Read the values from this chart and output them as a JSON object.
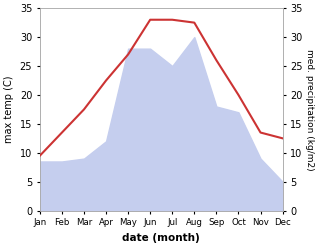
{
  "months": [
    "Jan",
    "Feb",
    "Mar",
    "Apr",
    "May",
    "Jun",
    "Jul",
    "Aug",
    "Sep",
    "Oct",
    "Nov",
    "Dec"
  ],
  "month_positions": [
    1,
    2,
    3,
    4,
    5,
    6,
    7,
    8,
    9,
    10,
    11,
    12
  ],
  "temperature": [
    9.5,
    13.5,
    17.5,
    22.5,
    27.0,
    33.0,
    33.0,
    32.5,
    26.0,
    20.0,
    13.5,
    12.5
  ],
  "precipitation": [
    8.5,
    8.5,
    9.0,
    12.0,
    28.0,
    28.0,
    25.0,
    30.0,
    18.0,
    17.0,
    9.0,
    5.0
  ],
  "temp_color": "#cc3333",
  "precip_fill_color": "#c5ceee",
  "ylim": [
    0,
    35
  ],
  "yticks": [
    0,
    5,
    10,
    15,
    20,
    25,
    30,
    35
  ],
  "xlabel": "date (month)",
  "ylabel_left": "max temp (C)",
  "ylabel_right": "med. precipitation (kg/m2)",
  "bg_color": "#ffffff"
}
